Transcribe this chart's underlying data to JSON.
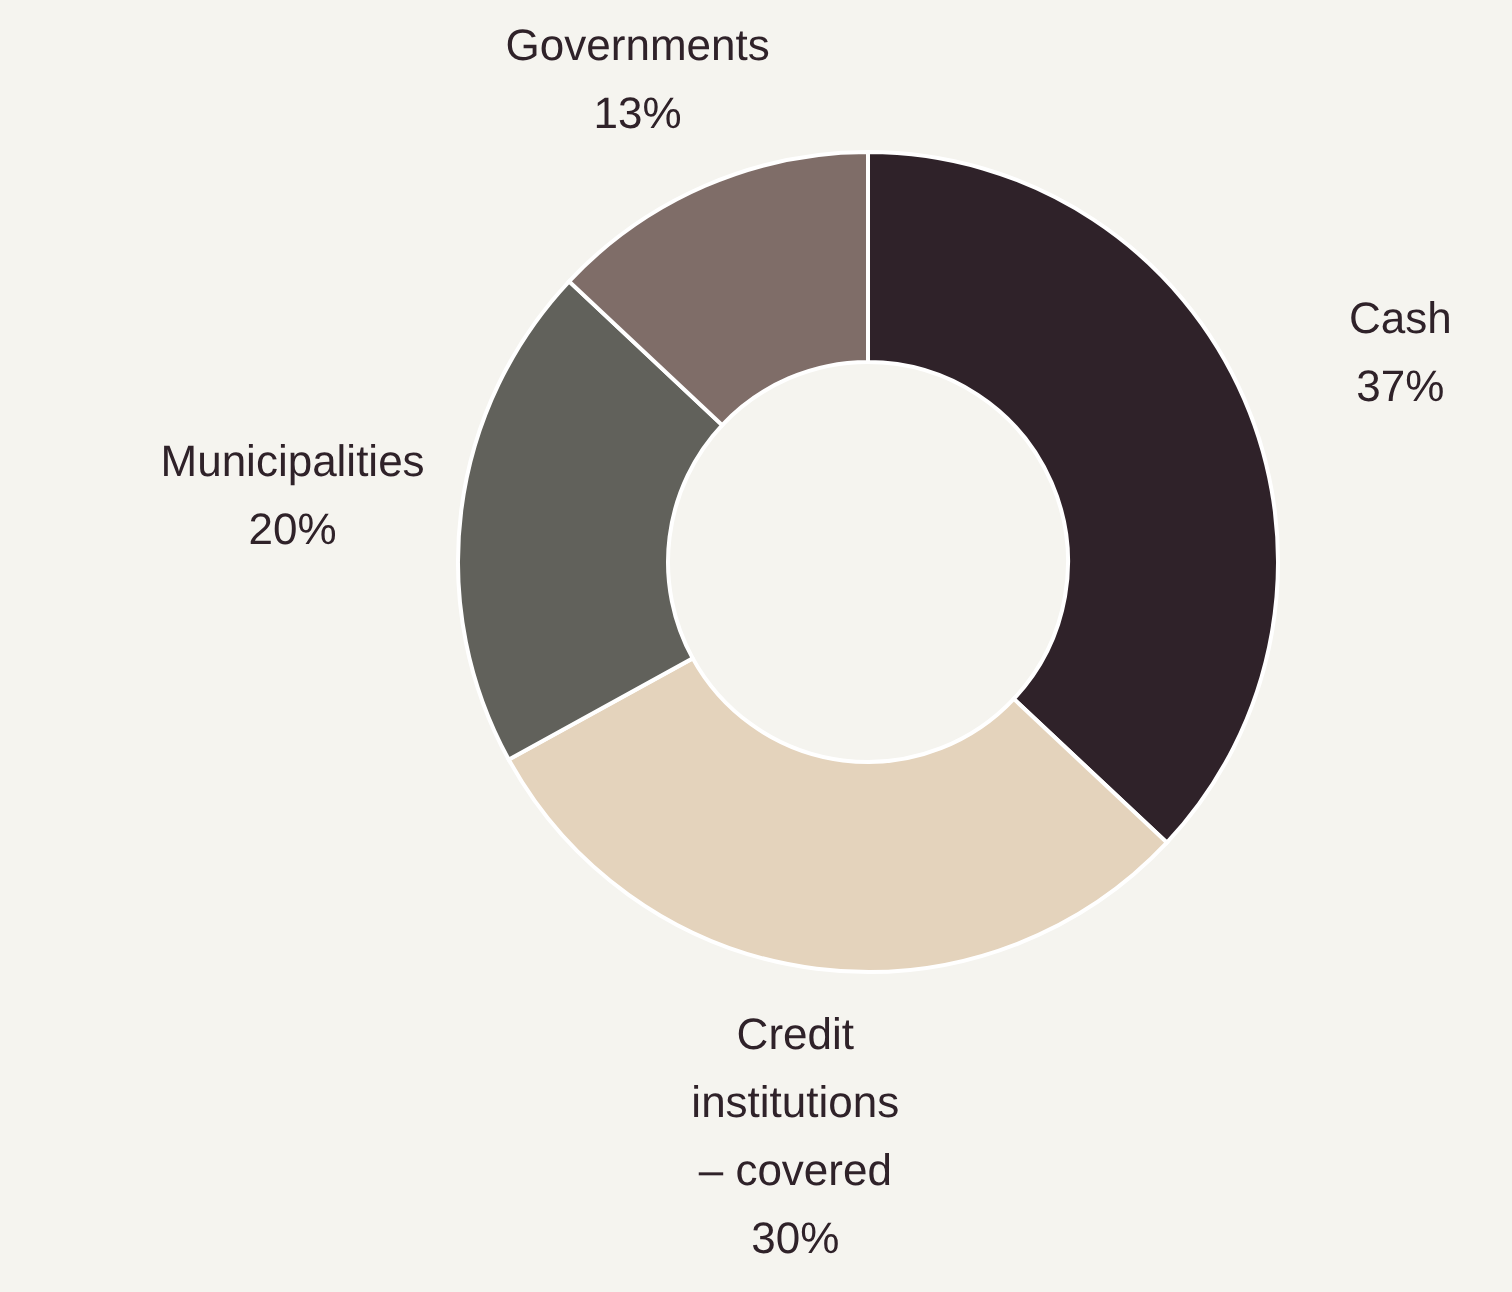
{
  "chart_data": {
    "type": "donut",
    "categories": [
      "Cash",
      "Credit institutions – covered",
      "Municipalities",
      "Governments"
    ],
    "values": [
      37,
      30,
      20,
      13
    ],
    "colors": [
      "#2f2229",
      "#e4d3bc",
      "#61615b",
      "#7f6d68"
    ],
    "value_labels": [
      "37%",
      "30%",
      "20%",
      "13%"
    ]
  }
}
